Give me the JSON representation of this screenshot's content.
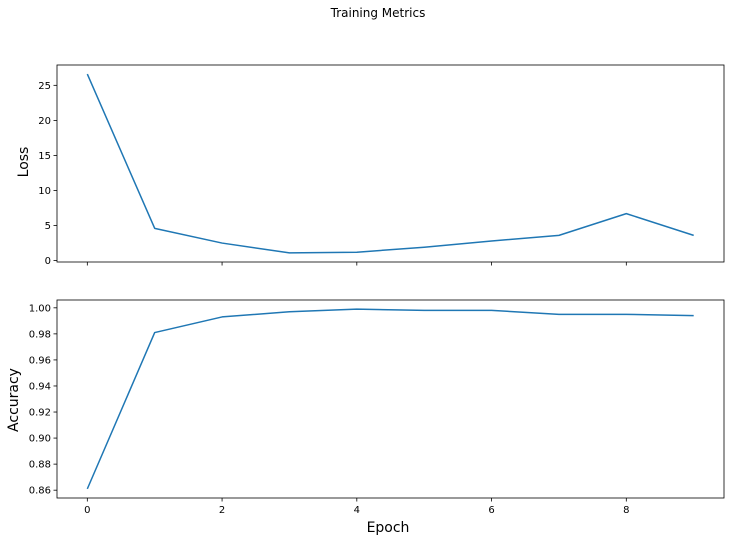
{
  "figure": {
    "title": "Training Metrics"
  },
  "chart_data": [
    {
      "type": "line",
      "xlabel": "",
      "ylabel": "Loss",
      "x": [
        0,
        1,
        2,
        3,
        4,
        5,
        6,
        7,
        8,
        9
      ],
      "series": [
        {
          "values": [
            26.6,
            4.6,
            2.5,
            1.1,
            1.2,
            1.9,
            2.8,
            3.6,
            6.7,
            3.6
          ],
          "color": "#1f77b4"
        }
      ],
      "xlim": [
        -0.45,
        9.45
      ],
      "ylim": [
        -0.2,
        27.9
      ],
      "xticks": [
        0,
        2,
        4,
        6,
        8
      ],
      "xtick_labels_visible": false,
      "yticks": [
        0,
        5,
        10,
        15,
        20,
        25
      ],
      "ytick_labels": [
        "0",
        "5",
        "10",
        "15",
        "20",
        "25"
      ],
      "grid": false
    },
    {
      "type": "line",
      "xlabel": "Epoch",
      "ylabel": "Accuracy",
      "x": [
        0,
        1,
        2,
        3,
        4,
        5,
        6,
        7,
        8,
        9
      ],
      "series": [
        {
          "values": [
            0.861,
            0.981,
            0.993,
            0.997,
            0.999,
            0.998,
            0.998,
            0.995,
            0.995,
            0.994
          ],
          "color": "#1f77b4"
        }
      ],
      "xlim": [
        -0.45,
        9.45
      ],
      "ylim": [
        0.854,
        1.006
      ],
      "xticks": [
        0,
        2,
        4,
        6,
        8
      ],
      "xtick_labels": [
        "0",
        "2",
        "4",
        "6",
        "8"
      ],
      "yticks": [
        0.86,
        0.88,
        0.9,
        0.92,
        0.94,
        0.96,
        0.98,
        1.0
      ],
      "ytick_labels": [
        "0.86",
        "0.88",
        "0.90",
        "0.92",
        "0.94",
        "0.96",
        "0.98",
        "1.00"
      ],
      "grid": false
    }
  ]
}
